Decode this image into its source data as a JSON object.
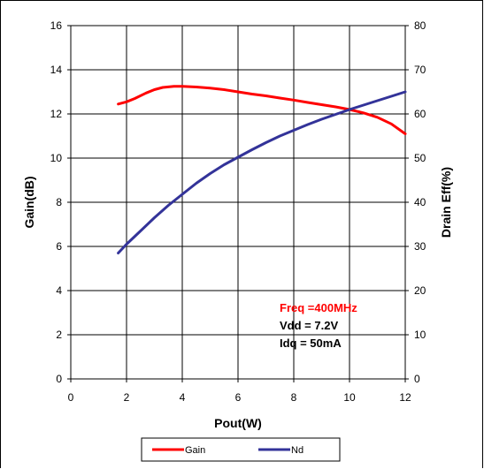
{
  "chart_data": {
    "type": "line",
    "xlabel": "Pout(W)",
    "ylabel": "Gain(dB)",
    "y2label": "Drain Eff(%)",
    "xlim": [
      0,
      12
    ],
    "ylim": [
      0,
      16
    ],
    "y2lim": [
      0,
      80
    ],
    "xticks": [
      "0",
      "2",
      "4",
      "6",
      "8",
      "10",
      "12"
    ],
    "yticks": [
      "0",
      "2",
      "4",
      "6",
      "8",
      "10",
      "12",
      "14",
      "16"
    ],
    "y2ticks": [
      "0",
      "10",
      "20",
      "30",
      "40",
      "50",
      "60",
      "70",
      "80"
    ],
    "grid": true,
    "legend_position": "bottom",
    "series": [
      {
        "name": "Gain",
        "axis": "left",
        "color": "#ff0000",
        "x": [
          1.7,
          2.0,
          2.3,
          2.7,
          3.0,
          3.3,
          3.7,
          4.0,
          4.5,
          5.0,
          5.5,
          6.0,
          6.5,
          7.0,
          7.5,
          8.0,
          8.5,
          9.0,
          9.5,
          10.0,
          10.5,
          11.0,
          11.5,
          12.0
        ],
        "values": [
          12.45,
          12.55,
          12.7,
          12.95,
          13.1,
          13.2,
          13.25,
          13.25,
          13.22,
          13.17,
          13.1,
          13.0,
          12.9,
          12.82,
          12.72,
          12.63,
          12.52,
          12.42,
          12.32,
          12.2,
          12.05,
          11.85,
          11.55,
          11.1
        ]
      },
      {
        "name": "Nd",
        "axis": "right",
        "color": "#333399",
        "x": [
          1.7,
          2.0,
          2.5,
          3.0,
          3.5,
          4.0,
          4.5,
          5.0,
          5.5,
          6.0,
          6.5,
          7.0,
          7.5,
          8.0,
          8.5,
          9.0,
          9.5,
          10.0,
          10.5,
          11.0,
          11.5,
          12.0
        ],
        "values": [
          28.5,
          30.5,
          33.5,
          36.5,
          39.3,
          41.8,
          44.3,
          46.5,
          48.5,
          50.2,
          51.9,
          53.5,
          55.0,
          56.3,
          57.6,
          58.8,
          59.9,
          61.0,
          62.0,
          63.0,
          64.0,
          65.0
        ]
      }
    ],
    "annotations": [
      {
        "text": "Freq =400MHz",
        "color": "#ff0000"
      },
      {
        "text": "Vdd = 7.2V",
        "color": "#000000"
      },
      {
        "text": "Idq = 50mA",
        "color": "#000000"
      }
    ]
  }
}
